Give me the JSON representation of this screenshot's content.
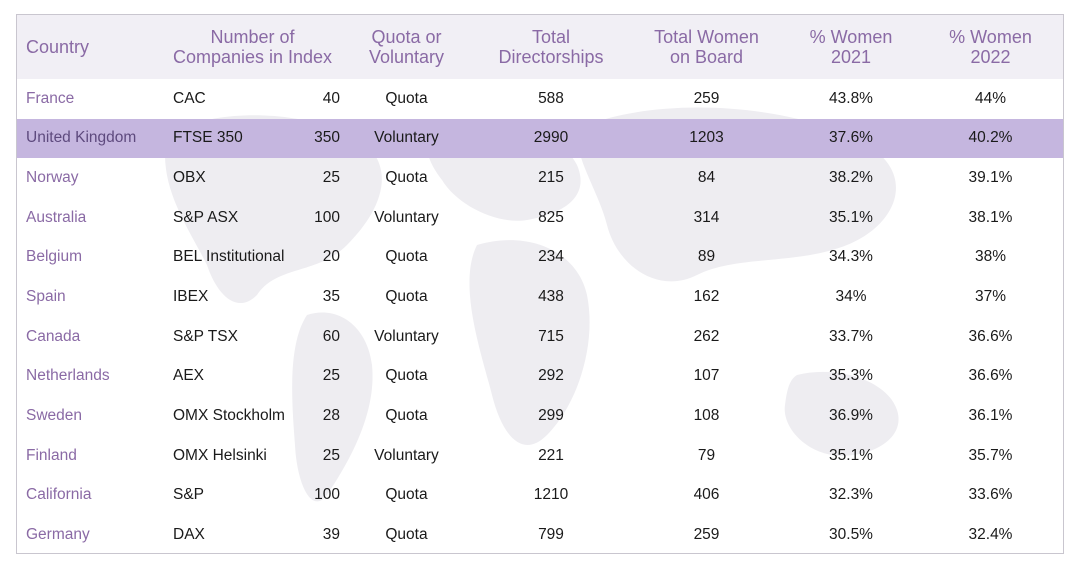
{
  "headers": {
    "country": "Country",
    "companies": [
      "Number of",
      "Companies in Index"
    ],
    "quota": [
      "Quota or",
      "Voluntary"
    ],
    "directorships": [
      "Total",
      "Directorships"
    ],
    "women": [
      "Total Women",
      "on Board"
    ],
    "pct2021": [
      "% Women",
      "2021"
    ],
    "pct2022": [
      "% Women",
      "2022"
    ]
  },
  "rows": [
    {
      "country": "France",
      "index": "CAC",
      "companies": "40",
      "type": "Quota",
      "directorships": "588",
      "women": "259",
      "pct2021": "43.8%",
      "pct2022": "44%"
    },
    {
      "country": "United Kingdom",
      "index": "FTSE 350",
      "companies": "350",
      "type": "Voluntary",
      "directorships": "2990",
      "women": "1203",
      "pct2021": "37.6%",
      "pct2022": "40.2%"
    },
    {
      "country": "Norway",
      "index": "OBX",
      "companies": "25",
      "type": "Quota",
      "directorships": "215",
      "women": "84",
      "pct2021": "38.2%",
      "pct2022": "39.1%"
    },
    {
      "country": "Australia",
      "index": "S&P ASX",
      "companies": "100",
      "type": "Voluntary",
      "directorships": "825",
      "women": "314",
      "pct2021": "35.1%",
      "pct2022": "38.1%"
    },
    {
      "country": "Belgium",
      "index": "BEL Institutional",
      "companies": "20",
      "type": "Quota",
      "directorships": "234",
      "women": "89",
      "pct2021": "34.3%",
      "pct2022": "38%"
    },
    {
      "country": "Spain",
      "index": "IBEX",
      "companies": "35",
      "type": "Quota",
      "directorships": "438",
      "women": "162",
      "pct2021": "34%",
      "pct2022": "37%"
    },
    {
      "country": "Canada",
      "index": "S&P TSX",
      "companies": "60",
      "type": "Voluntary",
      "directorships": "715",
      "women": "262",
      "pct2021": "33.7%",
      "pct2022": "36.6%"
    },
    {
      "country": "Netherlands",
      "index": "AEX",
      "companies": "25",
      "type": "Quota",
      "directorships": "292",
      "women": "107",
      "pct2021": "35.3%",
      "pct2022": "36.6%"
    },
    {
      "country": "Sweden",
      "index": "OMX Stockholm",
      "companies": "28",
      "type": "Quota",
      "directorships": "299",
      "women": "108",
      "pct2021": "36.9%",
      "pct2022": "36.1%"
    },
    {
      "country": "Finland",
      "index": "OMX Helsinki",
      "companies": "25",
      "type": "Voluntary",
      "directorships": "221",
      "women": "79",
      "pct2021": "35.1%",
      "pct2022": "35.7%"
    },
    {
      "country": "California",
      "index": "S&P",
      "companies": "100",
      "type": "Quota",
      "directorships": "1210",
      "women": "406",
      "pct2021": "32.3%",
      "pct2022": "33.6%"
    },
    {
      "country": "Germany",
      "index": "DAX",
      "companies": "39",
      "type": "Quota",
      "directorships": "799",
      "women": "259",
      "pct2021": "30.5%",
      "pct2022": "32.4%"
    }
  ],
  "highlight_color": "#c5b6df",
  "header_bg": "#f1eff5",
  "accent_text": "#8a6aa5"
}
